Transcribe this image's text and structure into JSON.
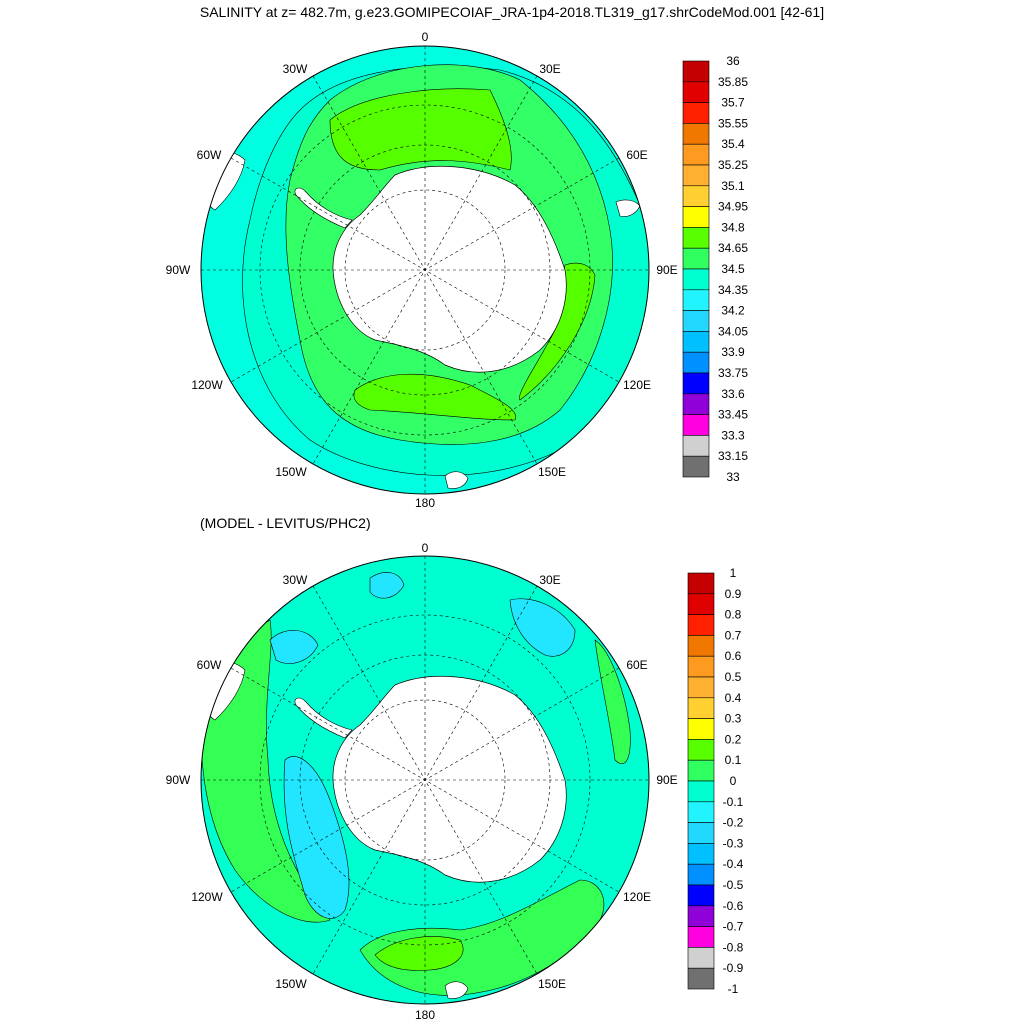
{
  "title": "SALINITY at z= 482.7m, g.e23.GOMIPECOIAF_JRA-1p4-2018.TL319_g17.shrCodeMod.001 [42-61]",
  "subtitle": "(MODEL - LEVITUS/PHC2)",
  "lon_labels": [
    "0",
    "30E",
    "60E",
    "90E",
    "120E",
    "150E",
    "180",
    "150W",
    "120W",
    "90W",
    "60W",
    "30W"
  ],
  "colors": {
    "land": "#ffffff",
    "coast": "#000000",
    "grid": "#000000",
    "top_ocean": "#00ffe0",
    "top_inner_band": "#33ff66",
    "top_green_core": "#55ff00",
    "top_outer": "#00ffe6",
    "bottom_main": "#00ffd0",
    "bottom_cyan": "#22e6ff",
    "bottom_green": "#33ff55",
    "bottom_lime": "#55ff00"
  },
  "colorbar_top": {
    "labels": [
      "36",
      "35.85",
      "35.7",
      "35.55",
      "35.4",
      "35.25",
      "35.1",
      "34.95",
      "34.8",
      "34.65",
      "34.5",
      "34.35",
      "34.2",
      "34.05",
      "33.9",
      "33.75",
      "33.6",
      "33.45",
      "33.3",
      "33.15",
      "33"
    ],
    "colors": [
      "#c40000",
      "#e00000",
      "#ff2000",
      "#f07800",
      "#ff9a20",
      "#ffb030",
      "#ffd030",
      "#ffff00",
      "#58ff00",
      "#30ff60",
      "#00ffd0",
      "#22f4ff",
      "#22d8ff",
      "#00c0ff",
      "#0090ff",
      "#0000ff",
      "#9000d8",
      "#ff00e0",
      "#d0d0d0",
      "#707070"
    ]
  },
  "colorbar_bottom": {
    "labels": [
      "1",
      "0.9",
      "0.8",
      "0.7",
      "0.6",
      "0.5",
      "0.4",
      "0.3",
      "0.2",
      "0.1",
      "0",
      "-0.1",
      "-0.2",
      "-0.3",
      "-0.4",
      "-0.5",
      "-0.6",
      "-0.7",
      "-0.8",
      "-0.9",
      "-1"
    ],
    "colors": [
      "#c40000",
      "#e00000",
      "#ff2000",
      "#f07800",
      "#ff9a20",
      "#ffb030",
      "#ffd030",
      "#ffff00",
      "#58ff00",
      "#30ff60",
      "#00ffd0",
      "#22f4ff",
      "#22d8ff",
      "#00c0ff",
      "#0090ff",
      "#0000ff",
      "#9000d8",
      "#ff00e0",
      "#d0d0d0",
      "#707070"
    ]
  }
}
